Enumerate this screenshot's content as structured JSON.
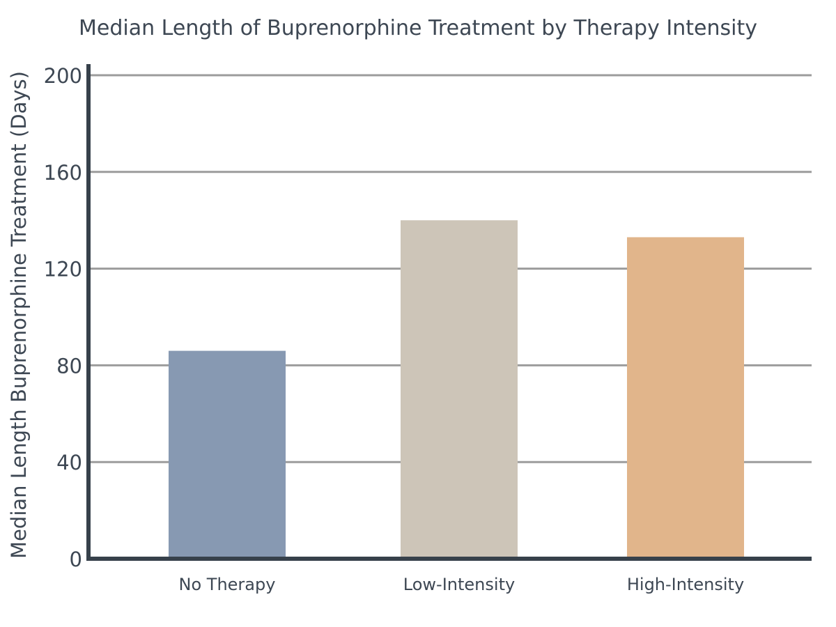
{
  "chart_data": {
    "type": "bar",
    "title": "Median Length of Buprenorphine Treatment by Therapy Intensity",
    "xlabel": "",
    "ylabel": "Median Length Buprenorphine Treatment (Days)",
    "categories": [
      "No Therapy",
      "Low-Intensity",
      "High-Intensity"
    ],
    "values": [
      86,
      140,
      133
    ],
    "colors": [
      "#8799b2",
      "#cdc5b8",
      "#e1b58b"
    ],
    "yticks": [
      0,
      40,
      80,
      120,
      160,
      200
    ],
    "ytick_labels": [
      "0",
      "40",
      "80",
      "120",
      "160",
      "200"
    ],
    "ylim": [
      0,
      200
    ],
    "grid": true,
    "grid_color": "#9c9c9c",
    "axis_color": "#37414b",
    "legend": "none"
  }
}
